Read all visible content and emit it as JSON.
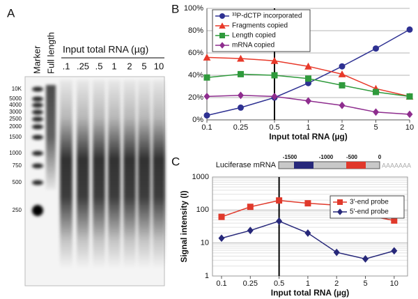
{
  "gel": {
    "panel": "A",
    "marker_label": "Marker",
    "full_length_label": "Full length",
    "input_label": "Input total RNA (µg)",
    "lanes": [
      ".1",
      ".25",
      ".5",
      "1",
      "2",
      "5",
      "10"
    ],
    "sizes": [
      "10K",
      "5000",
      "4000",
      "3000",
      "2500",
      "2000",
      "1500",
      "1000",
      "750",
      "500",
      "250"
    ]
  },
  "chart_data": [
    {
      "type": "line",
      "panel": "B",
      "xlabel": "Input total RNA (µg)",
      "categories": [
        "0.1",
        "0.25",
        "0.5",
        "1",
        "2",
        "5",
        "10"
      ],
      "ylim": [
        0,
        100
      ],
      "yticks": [
        {
          "value": 0,
          "label": "0%"
        },
        {
          "value": 20,
          "label": "20%"
        },
        {
          "value": 40,
          "label": "40%"
        },
        {
          "value": 60,
          "label": "60%"
        },
        {
          "value": 80,
          "label": "80%"
        },
        {
          "value": 100,
          "label": "100%"
        }
      ],
      "grid": true,
      "legend": "upper left",
      "highlight_category": "0.5",
      "series": [
        {
          "name": "³³P-dCTP incorporated",
          "color": "#2e3192",
          "marker": "circle",
          "values": [
            4,
            11,
            20,
            33,
            48,
            64,
            81
          ]
        },
        {
          "name": "Fragments copied",
          "color": "#e8392a",
          "marker": "triangle",
          "values": [
            56,
            55,
            53,
            48,
            41,
            28,
            21
          ]
        },
        {
          "name": "Length copied",
          "color": "#2f9a3c",
          "marker": "square",
          "values": [
            38,
            41,
            40,
            37,
            31,
            25,
            21
          ]
        },
        {
          "name": "mRNA copied",
          "color": "#8e2d8e",
          "marker": "diamond",
          "values": [
            21,
            22,
            21,
            17,
            13,
            7,
            5
          ]
        }
      ]
    },
    {
      "type": "line",
      "panel": "C",
      "xlabel": "Input total RNA (µg)",
      "ylabel": "Signal intensity (I)",
      "categories": [
        "0.1",
        "0.25",
        "0.5",
        "1",
        "2",
        "5",
        "10"
      ],
      "log_y": true,
      "ylim": [
        1,
        1000
      ],
      "yticks": [
        1,
        10,
        100,
        1000
      ],
      "grid": true,
      "legend": "upper right",
      "highlight_category": "0.5",
      "series": [
        {
          "name": "3′-end probe",
          "color": "#e0392b",
          "marker": "square",
          "values": [
            62,
            125,
            195,
            160,
            140,
            70,
            48
          ]
        },
        {
          "name": "5′-end probe",
          "color": "#27287a",
          "marker": "diamond",
          "values": [
            14,
            24,
            46,
            20,
            5.2,
            3.3,
            5.8
          ]
        }
      ],
      "diagram": {
        "label": "Luciferase mRNA",
        "positions": [
          "-1500",
          "-1000",
          "-500",
          "0"
        ],
        "tail": "AAAAAAA"
      }
    }
  ]
}
